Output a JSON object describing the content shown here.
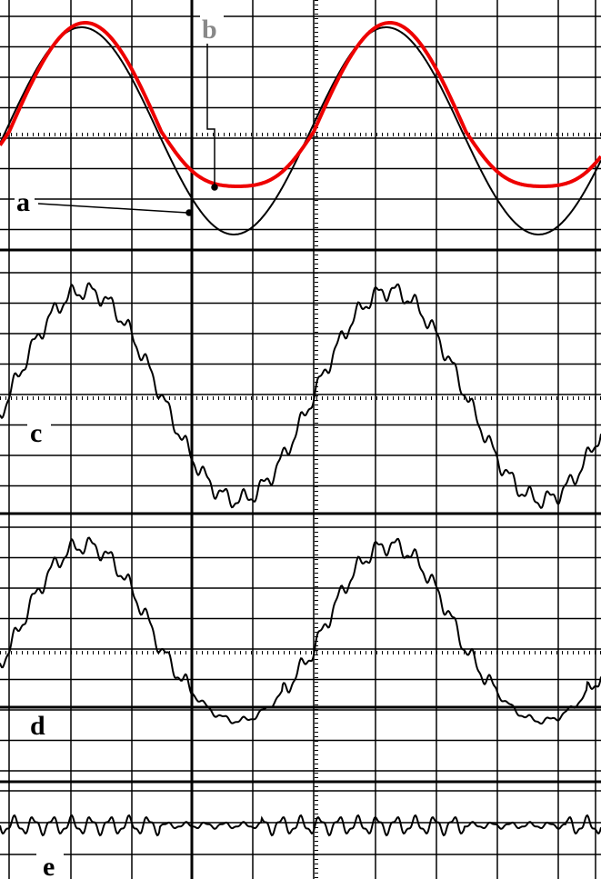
{
  "labels": {
    "a": "a",
    "b": "b",
    "c": "c",
    "d": "d",
    "e": "e"
  }
}
